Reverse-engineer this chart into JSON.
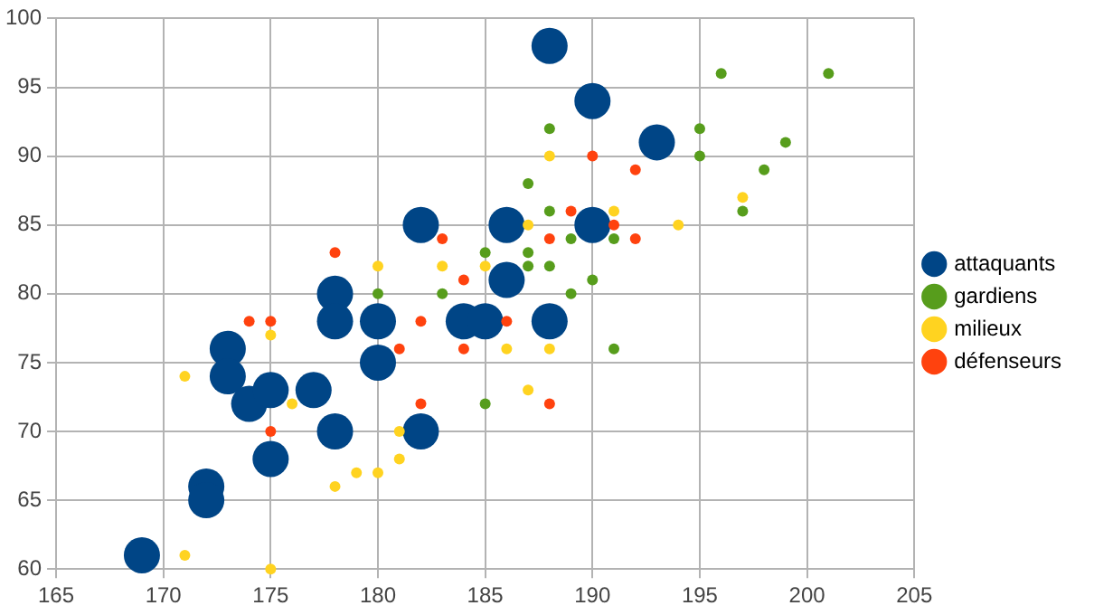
{
  "chart_data": {
    "type": "bubble",
    "xlim": [
      165,
      205
    ],
    "xticks": [
      165,
      170,
      175,
      180,
      185,
      190,
      195,
      200,
      205
    ],
    "ylim": [
      60,
      100
    ],
    "yticks": [
      60,
      65,
      70,
      75,
      80,
      85,
      90,
      95,
      100
    ],
    "grid": true,
    "legend": "right",
    "marker": "circle",
    "series": [
      {
        "name": "attaquants",
        "color": "#004586",
        "x": [
          169,
          172,
          172,
          173,
          173,
          174,
          175,
          175,
          177,
          178,
          178,
          178,
          180,
          180,
          182,
          182,
          184,
          185,
          186,
          186,
          188,
          188,
          190,
          190,
          193
        ],
        "values": [
          61,
          66,
          65,
          76,
          74,
          72,
          73,
          68,
          73,
          80,
          78,
          70,
          78,
          75,
          85,
          70,
          78,
          78,
          85,
          81,
          98,
          78,
          94,
          85,
          91
        ],
        "sizes": [
          1,
          1,
          1,
          1,
          1,
          1,
          1,
          1,
          1,
          1,
          1,
          1,
          1,
          1,
          1,
          1,
          1,
          1,
          1,
          1,
          1,
          1,
          1,
          1,
          1
        ]
      },
      {
        "name": "gardiens",
        "color": "#579d1c",
        "x": [
          180,
          183,
          185,
          185,
          187,
          187,
          187,
          188,
          188,
          188,
          189,
          189,
          190,
          191,
          191,
          196,
          201,
          195,
          195,
          199,
          198,
          197
        ],
        "values": [
          80,
          80,
          83,
          72,
          88,
          83,
          82,
          92,
          86,
          82,
          84,
          80,
          81,
          84,
          76,
          96,
          96,
          92,
          90,
          91,
          89,
          86
        ],
        "sizes": [
          0.09,
          0.09,
          0.09,
          0.09,
          0.09,
          0.09,
          0.09,
          0.09,
          0.09,
          0.09,
          0.09,
          0.09,
          0.09,
          0.09,
          0.09,
          0.09,
          0.09,
          0.09,
          0.09,
          0.09,
          0.09,
          0.09
        ]
      },
      {
        "name": "milieux",
        "color": "#ffd320",
        "x": [
          171,
          171,
          175,
          175,
          176,
          178,
          179,
          180,
          180,
          181,
          181,
          183,
          185,
          187,
          187,
          186,
          188,
          188,
          191,
          194,
          197
        ],
        "values": [
          74,
          61,
          60,
          77,
          72,
          66,
          67,
          67,
          82,
          68,
          70,
          82,
          82,
          85,
          73,
          76,
          90,
          76,
          86,
          85,
          87
        ],
        "sizes": [
          0.09,
          0.09,
          0.09,
          0.09,
          0.09,
          0.09,
          0.09,
          0.09,
          0.09,
          0.09,
          0.09,
          0.09,
          0.09,
          0.09,
          0.09,
          0.09,
          0.09,
          0.09,
          0.09,
          0.09,
          0.09
        ]
      },
      {
        "name": "défenseurs",
        "color": "#ff420e",
        "x": [
          174,
          175,
          175,
          178,
          181,
          182,
          182,
          183,
          184,
          184,
          186,
          188,
          188,
          189,
          190,
          191,
          192,
          192
        ],
        "values": [
          78,
          78,
          70,
          83,
          76,
          78,
          72,
          84,
          81,
          76,
          78,
          84,
          72,
          86,
          90,
          85,
          89,
          84
        ],
        "sizes": [
          0.09,
          0.09,
          0.09,
          0.09,
          0.09,
          0.09,
          0.09,
          0.09,
          0.09,
          0.09,
          0.09,
          0.09,
          0.09,
          0.09,
          0.09,
          0.09,
          0.09,
          0.09
        ]
      }
    ]
  }
}
